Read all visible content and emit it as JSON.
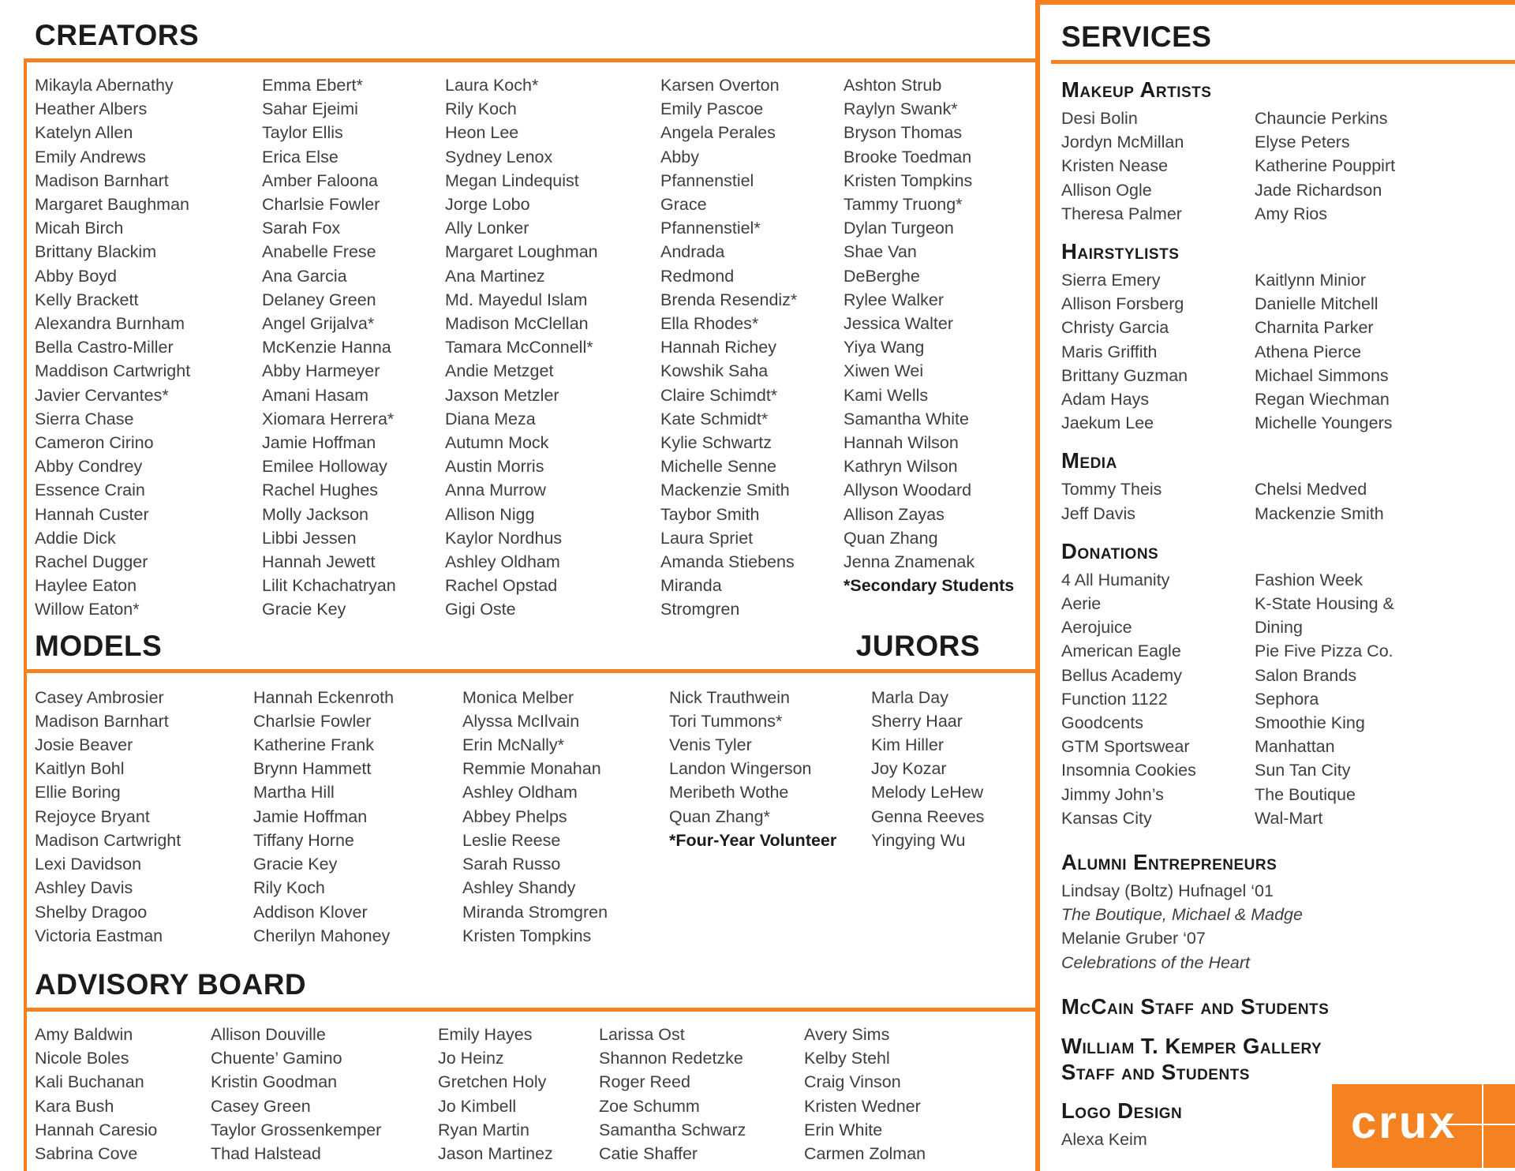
{
  "theme": {
    "accent_color": "#F58220"
  },
  "creators": {
    "title": "CREATORS",
    "columns": [
      [
        "Mikayla Abernathy",
        "Heather Albers",
        "Katelyn Allen",
        "Emily Andrews",
        "Madison Barnhart",
        "Margaret Baughman",
        "Micah Birch",
        "Brittany Blackim",
        "Abby Boyd",
        "Kelly Brackett",
        "Alexandra Burnham",
        "Bella Castro-Miller",
        "Maddison Cartwright",
        "Javier Cervantes*",
        "Sierra Chase",
        "Cameron Cirino",
        "Abby Condrey",
        "Essence Crain",
        "Hannah Custer",
        "Addie Dick",
        "Rachel Dugger",
        "Haylee Eaton",
        "Willow Eaton*"
      ],
      [
        "Emma Ebert*",
        "Sahar Ejeimi",
        "Taylor Ellis",
        "Erica Else",
        "Amber Faloona",
        "Charlsie Fowler",
        "Sarah Fox",
        "Anabelle Frese",
        "Ana Garcia",
        "Delaney Green",
        "Angel Grijalva*",
        "McKenzie Hanna",
        "Abby Harmeyer",
        "Amani Hasam",
        "Xiomara Herrera*",
        "Jamie Hoffman",
        "Emilee Holloway",
        "Rachel Hughes",
        "Molly Jackson",
        "Libbi Jessen",
        "Hannah Jewett",
        "Lilit Kchachatryan",
        "Gracie Key"
      ],
      [
        "Laura Koch*",
        "Rily Koch",
        "Heon Lee",
        "Sydney Lenox",
        "Megan Lindequist",
        "Jorge Lobo",
        "Ally Lonker",
        "Margaret Loughman",
        "Ana Martinez",
        "Md. Mayedul Islam",
        "Madison McClellan",
        "Tamara McConnell*",
        "Andie Metzget",
        "Jaxson Metzler",
        "Diana Meza",
        "Autumn Mock",
        "Austin Morris",
        "Anna Murrow",
        "Allison Nigg",
        "Kaylor Nordhus",
        "Ashley Oldham",
        "Rachel Opstad",
        "Gigi Oste"
      ],
      [
        "Karsen Overton",
        "Emily Pascoe",
        "Angela Perales",
        "Abby",
        "Pfannenstiel",
        "Grace",
        "Pfannenstiel*",
        "Andrada",
        "Redmond",
        "Brenda Resendiz*",
        "Ella Rhodes*",
        "Hannah Richey",
        "Kowshik Saha",
        "Claire Schimdt*",
        "Kate Schmidt*",
        "Kylie Schwartz",
        "Michelle Senne",
        "Mackenzie Smith",
        "Taybor Smith",
        "Laura Spriet",
        "Amanda Stiebens",
        "Miranda",
        "Stromgren"
      ],
      [
        "Ashton Strub",
        "Raylyn Swank*",
        "Bryson Thomas",
        "Brooke Toedman",
        "Kristen Tompkins",
        "Tammy Truong*",
        "Dylan Turgeon",
        "Shae Van",
        "DeBerghe",
        "Rylee Walker",
        "Jessica Walter",
        "Yiya Wang",
        "Xiwen Wei",
        "Kami Wells",
        "Samantha White",
        "Hannah Wilson",
        "Kathryn Wilson",
        "Allyson Woodard",
        "Allison Zayas",
        "Quan Zhang",
        "Jenna Znamenak",
        {
          "text": "*Secondary Students",
          "bold": true
        }
      ]
    ]
  },
  "models": {
    "title": "MODELS",
    "columns": [
      [
        "Casey Ambrosier",
        "Madison Barnhart",
        "Josie Beaver",
        "Kaitlyn Bohl",
        "Ellie Boring",
        "Rejoyce Bryant",
        "Madison Cartwright",
        "Lexi Davidson",
        "Ashley Davis",
        "Shelby Dragoo",
        "Victoria Eastman"
      ],
      [
        "Hannah Eckenroth",
        "Charlsie Fowler",
        "Katherine Frank",
        "Brynn Hammett",
        "Martha Hill",
        "Jamie Hoffman",
        "Tiffany Horne",
        "Gracie Key",
        "Rily Koch",
        "Addison Klover",
        "Cherilyn Mahoney"
      ],
      [
        "Monica Melber",
        "Alyssa McIlvain",
        "Erin McNally*",
        "Remmie Monahan",
        "Ashley Oldham",
        "Abbey Phelps",
        "Leslie Reese",
        "Sarah Russo",
        "Ashley Shandy",
        "Miranda Stromgren",
        "Kristen Tompkins"
      ],
      [
        "Nick Trauthwein",
        "Tori Tummons*",
        "Venis Tyler",
        "Landon Wingerson",
        "Meribeth Wothe",
        "Quan Zhang*",
        {
          "text": "*Four-Year Volunteer",
          "bold": true
        }
      ]
    ]
  },
  "jurors": {
    "title": "JURORS",
    "names": [
      "Marla Day",
      "Sherry Haar",
      "Kim Hiller",
      "Joy Kozar",
      "Melody LeHew",
      "Genna Reeves",
      "Yingying Wu"
    ]
  },
  "advisory_board": {
    "title": "ADVISORY BOARD",
    "columns": [
      [
        "Amy Baldwin",
        "Nicole Boles",
        "Kali Buchanan",
        "Kara Bush",
        "Hannah Caresio",
        "Sabrina Cove"
      ],
      [
        "Allison Douville",
        "Chuente’ Gamino",
        "Kristin Goodman",
        "Casey Green",
        "Taylor Grossenkemper",
        "Thad Halstead"
      ],
      [
        "Emily Hayes",
        "Jo Heinz",
        "Gretchen Holy",
        "Jo Kimbell",
        "Ryan Martin",
        "Jason Martinez"
      ],
      [
        "Larissa Ost",
        "Shannon Redetzke",
        "Roger Reed",
        "Zoe Schumm",
        "Samantha Schwarz",
        "Catie Shaffer"
      ],
      [
        "Avery Sims",
        "Kelby Stehl",
        "Craig Vinson",
        "Kristen Wedner",
        "Erin White",
        "Carmen Zolman"
      ]
    ]
  },
  "services": {
    "title": "SERVICES",
    "makeup_artists": {
      "heading": "Makeup Artists",
      "col1": [
        "Desi Bolin",
        "Jordyn McMillan",
        "Kristen Nease",
        "Allison Ogle",
        "Theresa Palmer"
      ],
      "col2": [
        "Chauncie Perkins",
        "Elyse Peters",
        "Katherine Pouppirt",
        "Jade Richardson",
        "Amy Rios"
      ]
    },
    "hairstylists": {
      "heading": "Hairstylists",
      "col1": [
        "Sierra Emery",
        "Allison Forsberg",
        "Christy Garcia",
        "Maris Griffith",
        "Brittany Guzman",
        "Adam Hays",
        "Jaekum Lee"
      ],
      "col2": [
        "Kaitlynn Minior",
        "Danielle Mitchell",
        "Charnita Parker",
        "Athena Pierce",
        "Michael Simmons",
        "Regan Wiechman",
        "Michelle Youngers"
      ]
    },
    "media": {
      "heading": "Media",
      "col1": [
        "Tommy Theis",
        "Jeff Davis"
      ],
      "col2": [
        "Chelsi Medved",
        "Mackenzie Smith"
      ]
    },
    "donations": {
      "heading": "Donations",
      "col1": [
        "4 All Humanity",
        "Aerie",
        "Aerojuice",
        "American Eagle",
        "Bellus Academy",
        "Function 1122",
        "Goodcents",
        "GTM Sportswear",
        "Insomnia Cookies",
        "Jimmy John’s",
        "Kansas City"
      ],
      "col2": [
        "Fashion Week",
        "K-State Housing &",
        "Dining",
        "Pie Five Pizza Co.",
        "Salon Brands",
        "Sephora",
        "Smoothie King",
        "Manhattan",
        "Sun Tan City",
        "The Boutique",
        "Wal-Mart"
      ]
    },
    "alumni_entrepreneurs": {
      "heading": "Alumni Entrepreneurs",
      "lines": [
        "Lindsay (Boltz) Hufnagel ‘01",
        {
          "text": "The Boutique, Michael & Madge",
          "italic": true
        },
        "Melanie Gruber ‘07",
        {
          "text": "Celebrations of the Heart",
          "italic": true
        }
      ]
    },
    "mccain": {
      "heading": "McCain Staff and Students"
    },
    "kemper": {
      "line1": "William T. Kemper Gallery",
      "line2": "Staff and Students"
    },
    "logo_design": {
      "heading": "Logo Design",
      "lines": [
        "Alexa Keim"
      ]
    }
  },
  "logo": {
    "text": "crux"
  }
}
